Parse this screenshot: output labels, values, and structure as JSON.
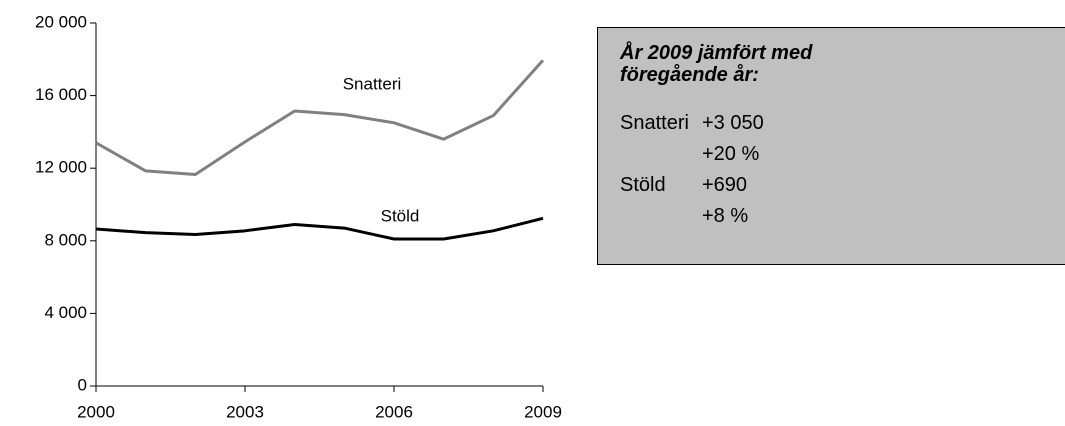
{
  "chart_data": {
    "type": "line",
    "x": [
      2000,
      2001,
      2002,
      2003,
      2004,
      2005,
      2006,
      2007,
      2008,
      2009
    ],
    "series": [
      {
        "name": "Snatteri",
        "color": "#808080",
        "values": [
          13400,
          11850,
          11650,
          13450,
          15150,
          14950,
          14500,
          13600,
          14900,
          17950
        ]
      },
      {
        "name": "Stöld",
        "color": "#000000",
        "values": [
          8650,
          8450,
          8350,
          8550,
          8900,
          8700,
          8100,
          8100,
          8550,
          9240
        ]
      }
    ],
    "xlim": [
      2000,
      2009
    ],
    "xticks": [
      2000,
      2003,
      2006,
      2009
    ],
    "ylim": [
      0,
      20000
    ],
    "yticks": [
      0,
      {
        "value": 4000,
        "label": "4 000"
      },
      {
        "value": 8000,
        "label": "8 000"
      },
      {
        "value": 12000,
        "label": "12 000"
      },
      {
        "value": 16000,
        "label": "16 000"
      },
      {
        "value": 20000,
        "label": "20 000"
      }
    ],
    "grid": false,
    "annotation": {
      "title": "År 2009 jämfört med föregående år:",
      "rows": [
        {
          "label": "Snatteri",
          "lines": [
            "+3 050",
            "+20 %"
          ]
        },
        {
          "label": "Stöld",
          "lines": [
            "+690",
            "+8 %"
          ]
        }
      ]
    }
  }
}
